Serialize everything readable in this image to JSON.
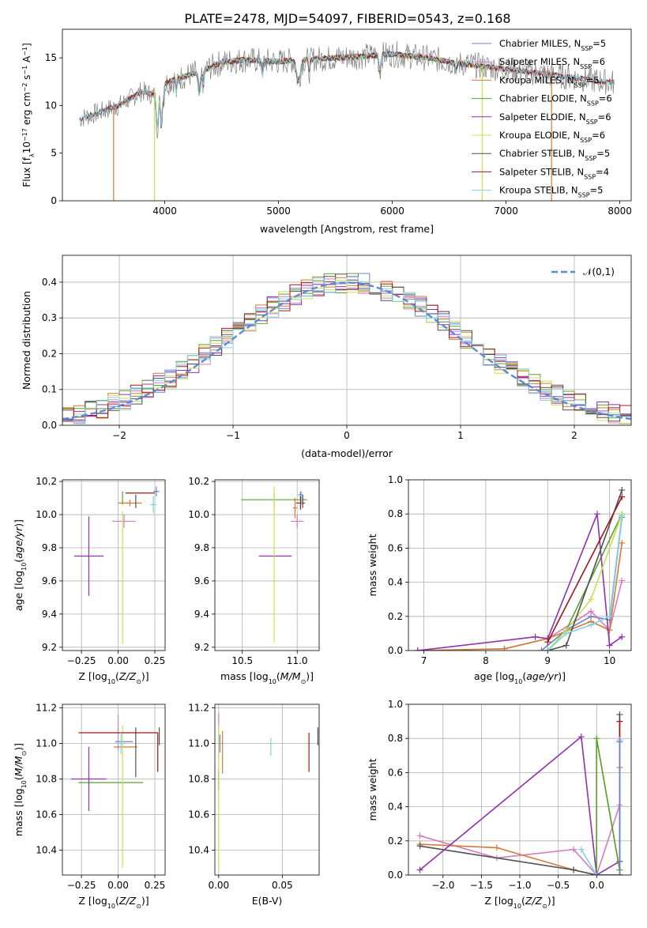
{
  "title": "PLATE=2478, MJD=54097, FIBERID=0543, z=0.168",
  "colors": {
    "chabrier_miles": "#6f7fd0",
    "salpeter_miles": "#d47cc0",
    "kroupa_miles": "#d27a36",
    "chabrier_elodie": "#5aa02c",
    "salpeter_elodie": "#9030b0",
    "kroupa_elodie": "#c9e052",
    "chabrier_stelib": "#505050",
    "salpeter_stelib": "#a01818",
    "kroupa_stelib": "#7fd3e0",
    "gauss": "#5b8bd8"
  },
  "chart_data": [
    {
      "id": "spectrum",
      "type": "line",
      "title": "PLATE=2478, MJD=54097, FIBERID=0543, z=0.168",
      "xlabel": "wavelength [Angstrom, rest frame]",
      "ylabel": "Flux [f_λ 10^-17 erg cm^-2 s^-1 A^-1]",
      "xlim": [
        3100,
        8100
      ],
      "ylim": [
        0,
        18
      ],
      "xticks": [
        4000,
        5000,
        6000,
        7000,
        8000
      ],
      "yticks": [
        0,
        5,
        10,
        15
      ],
      "legend_position": "right",
      "legend": [
        "Chabrier MILES, N_SSP=5",
        "Salpeter MILES, N_SSP=6",
        "Kroupa MILES, N_SSP=5",
        "Chabrier ELODIE, N_SSP=6",
        "Salpeter ELODIE, N_SSP=6",
        "Kroupa ELODIE, N_SSP=6",
        "Chabrier STELIB, N_SSP=5",
        "Salpeter STELIB, N_SSP=4",
        "Kroupa STELIB, N_SSP=5"
      ],
      "continuum": [
        [
          3250,
          8.6
        ],
        [
          3400,
          9.2
        ],
        [
          3600,
          10.0
        ],
        [
          3800,
          11.5
        ],
        [
          3950,
          12.0
        ],
        [
          4100,
          12.8
        ],
        [
          4300,
          13.5
        ],
        [
          4500,
          14.5
        ],
        [
          4700,
          14.8
        ],
        [
          5000,
          14.6
        ],
        [
          5200,
          14.8
        ],
        [
          5500,
          15.0
        ],
        [
          5800,
          15.2
        ],
        [
          6000,
          15.4
        ],
        [
          6300,
          15.0
        ],
        [
          6600,
          14.4
        ],
        [
          6800,
          14.1
        ],
        [
          7000,
          13.8
        ],
        [
          7200,
          13.5
        ],
        [
          7400,
          13.2
        ],
        [
          7600,
          12.9
        ],
        [
          7800,
          12.6
        ],
        [
          7950,
          12.4
        ]
      ],
      "model_dropouts": [
        [
          3550,
          "kroupa_miles"
        ],
        [
          3910,
          "kroupa_elodie"
        ],
        [
          6790,
          "kroupa_elodie"
        ],
        [
          7400,
          "kroupa_miles"
        ]
      ]
    },
    {
      "id": "residuals",
      "type": "line",
      "xlabel": "(data-model)/error",
      "ylabel": "Normed distribution",
      "xlim": [
        -2.5,
        2.5
      ],
      "ylim": [
        0,
        0.475
      ],
      "xticks": [
        -2,
        -1,
        0,
        1,
        2
      ],
      "yticks": [
        0.0,
        0.1,
        0.2,
        0.3,
        0.4
      ],
      "legend": [
        "𝒩(0,1)"
      ],
      "legend_position": "top-right",
      "bin_width": 0.1,
      "bin_start": -2.5
    },
    {
      "id": "age_vs_Z",
      "type": "scatter",
      "xlabel": "Z [log10(Z/Z☉)]",
      "ylabel": "age [log10(age/yr)]",
      "xlim": [
        -0.38,
        0.32
      ],
      "ylim": [
        9.18,
        10.21
      ],
      "xticks": [
        -0.25,
        0.0,
        0.25
      ],
      "xticklabels": [
        "−0.25",
        "0.00",
        "0.25"
      ],
      "yticks": [
        9.2,
        9.4,
        9.6,
        9.8,
        10.0,
        10.2
      ],
      "points": [
        {
          "model": "chabrier_miles",
          "x": 0.26,
          "y": 10.14,
          "xerr": 0.02,
          "yerr": 0.03
        },
        {
          "model": "salpeter_miles",
          "x": 0.04,
          "y": 9.96,
          "xerr": 0.08,
          "yerr": 0.04
        },
        {
          "model": "kroupa_miles",
          "x": 0.08,
          "y": 10.07,
          "xerr": 0.08,
          "yerr": 0.02
        },
        {
          "model": "chabrier_elodie",
          "x": 0.03,
          "y": 10.1,
          "xerr": 0.0,
          "yerr": 0.04
        },
        {
          "model": "salpeter_elodie",
          "x": -0.2,
          "y": 9.75,
          "xerr": 0.1,
          "yerr": 0.24
        },
        {
          "model": "kroupa_elodie",
          "x": 0.03,
          "y": 9.62,
          "xerr": 0.0,
          "yerr": 0.4
        },
        {
          "model": "chabrier_stelib",
          "x": 0.12,
          "y": 10.08,
          "xerr": 0.0,
          "yerr": 0.04
        },
        {
          "model": "salpeter_stelib",
          "x": 0.15,
          "y": 10.13,
          "xerr": 0.1,
          "yerr": 0.0
        },
        {
          "model": "kroupa_stelib",
          "x": 0.24,
          "y": 10.06,
          "xerr": 0.02,
          "yerr": 0.05
        }
      ]
    },
    {
      "id": "age_vs_mass",
      "type": "scatter",
      "xlabel": "mass [log10(M/M☉)]",
      "ylabel": "",
      "xlim": [
        10.25,
        11.2
      ],
      "ylim": [
        9.18,
        10.21
      ],
      "xticks": [
        10.5,
        11.0
      ],
      "xticklabels": [
        "10.5",
        "11.0"
      ],
      "yticks": [
        9.2,
        9.4,
        9.6,
        9.8,
        10.0,
        10.2
      ],
      "points": [
        {
          "model": "chabrier_miles",
          "x": 11.03,
          "y": 10.12,
          "xerr": 0.02,
          "yerr": 0.02
        },
        {
          "model": "salpeter_miles",
          "x": 11.0,
          "y": 9.96,
          "xerr": 0.06,
          "yerr": 0.04
        },
        {
          "model": "kroupa_miles",
          "x": 10.98,
          "y": 10.04,
          "xerr": 0.02,
          "yerr": 0.06
        },
        {
          "model": "chabrier_elodie",
          "x": 10.79,
          "y": 10.09,
          "xerr": 0.3,
          "yerr": 0.04
        },
        {
          "model": "salpeter_elodie",
          "x": 10.8,
          "y": 9.75,
          "xerr": 0.15,
          "yerr": 0.0
        },
        {
          "model": "kroupa_elodie",
          "x": 10.79,
          "y": 9.7,
          "xerr": 0.0,
          "yerr": 0.47
        },
        {
          "model": "chabrier_stelib",
          "x": 11.05,
          "y": 10.08,
          "xerr": 0.0,
          "yerr": 0.04
        },
        {
          "model": "salpeter_stelib",
          "x": 11.03,
          "y": 10.07,
          "xerr": 0.04,
          "yerr": 0.04
        },
        {
          "model": "kroupa_stelib",
          "x": 11.04,
          "y": 10.1,
          "xerr": 0.0,
          "yerr": 0.04
        }
      ]
    },
    {
      "id": "weight_vs_age",
      "type": "line",
      "xlabel": "age [log10(age/yr)]",
      "ylabel": "mass weight",
      "xlim": [
        6.75,
        10.35
      ],
      "ylim": [
        0,
        1
      ],
      "xticks": [
        7,
        8,
        9,
        10
      ],
      "yticks": [
        0.0,
        0.2,
        0.4,
        0.6,
        0.8,
        1.0
      ],
      "series": [
        {
          "model": "chabrier_miles",
          "x": [
            8.9,
            9.3,
            9.7,
            10.0,
            10.2
          ],
          "y": [
            0.0,
            0.12,
            0.2,
            0.18,
            0.78
          ]
        },
        {
          "model": "salpeter_miles",
          "x": [
            8.3,
            9.0,
            9.7,
            10.0,
            10.2
          ],
          "y": [
            0.01,
            0.07,
            0.23,
            0.12,
            0.41
          ]
        },
        {
          "model": "kroupa_miles",
          "x": [
            6.9,
            8.3,
            9.0,
            9.7,
            10.0,
            10.2
          ],
          "y": [
            0.0,
            0.01,
            0.07,
            0.17,
            0.12,
            0.63
          ]
        },
        {
          "model": "chabrier_elodie",
          "x": [
            9.0,
            9.3,
            10.2
          ],
          "y": [
            0.0,
            0.12,
            0.8
          ]
        },
        {
          "model": "salpeter_elodie",
          "x": [
            6.9,
            8.8,
            9.0,
            9.8,
            10.0,
            10.2
          ],
          "y": [
            0.0,
            0.08,
            0.07,
            0.8,
            0.03,
            0.08
          ]
        },
        {
          "model": "kroupa_elodie",
          "x": [
            9.0,
            9.3,
            9.7,
            10.2
          ],
          "y": [
            0.0,
            0.12,
            0.3,
            0.8
          ]
        },
        {
          "model": "chabrier_stelib",
          "x": [
            9.0,
            9.3,
            10.2
          ],
          "y": [
            0.0,
            0.03,
            0.94
          ]
        },
        {
          "model": "salpeter_stelib",
          "x": [
            9.0,
            10.2
          ],
          "y": [
            0.05,
            0.9
          ]
        },
        {
          "model": "kroupa_stelib",
          "x": [
            9.0,
            9.3,
            9.7,
            10.0,
            10.2
          ],
          "y": [
            0.0,
            0.1,
            0.15,
            0.2,
            0.79
          ]
        }
      ]
    },
    {
      "id": "mass_vs_Z",
      "type": "scatter",
      "xlabel": "Z [log10(Z/Z☉)]",
      "ylabel": "mass [log10(M/M☉)]",
      "xlim": [
        -0.38,
        0.32
      ],
      "ylim": [
        10.26,
        11.22
      ],
      "xticks": [
        -0.25,
        0.0,
        0.25
      ],
      "xticklabels": [
        "−0.25",
        "0.00",
        "0.25"
      ],
      "yticks": [
        10.4,
        10.6,
        10.8,
        11.0,
        11.2
      ],
      "points": [
        {
          "model": "chabrier_miles",
          "x": 0.04,
          "y": 11.01,
          "xerr": 0.06,
          "yerr": 0.0
        },
        {
          "model": "salpeter_miles",
          "x": 0.0,
          "y": 11.06,
          "xerr": 0.0,
          "yerr": 0.1
        },
        {
          "model": "kroupa_miles",
          "x": 0.05,
          "y": 10.98,
          "xerr": 0.08,
          "yerr": 0.0
        },
        {
          "model": "chabrier_elodie",
          "x": -0.05,
          "y": 10.78,
          "xerr": 0.22,
          "yerr": 0.0
        },
        {
          "model": "salpeter_elodie",
          "x": -0.2,
          "y": 10.8,
          "xerr": 0.12,
          "yerr": 0.18
        },
        {
          "model": "kroupa_elodie",
          "x": 0.03,
          "y": 10.7,
          "xerr": 0.0,
          "yerr": 0.4
        },
        {
          "model": "chabrier_stelib",
          "x": 0.12,
          "y": 10.95,
          "xerr": 0.0,
          "yerr": 0.14
        },
        {
          "model": "salpeter_stelib",
          "x": 0.0,
          "y": 11.06,
          "xerr": 0.27,
          "yerr": 0.0
        },
        {
          "model": "kroupa_stelib",
          "x": 0.02,
          "y": 11.0,
          "xerr": 0.04,
          "yerr": 0.06
        }
      ],
      "extra_segments": [
        {
          "model": "salpeter_stelib",
          "x": 0.27,
          "y": 10.95,
          "xerr": 0.0,
          "yerr": 0.11
        },
        {
          "model": "chabrier_stelib",
          "x": 0.28,
          "y": 11.04,
          "xerr": 0.0,
          "yerr": 0.05
        }
      ]
    },
    {
      "id": "mass_vs_ebv",
      "type": "scatter",
      "xlabel": "E(B-V)",
      "ylabel": "",
      "xlim": [
        -0.003,
        0.079
      ],
      "ylim": [
        10.26,
        11.22
      ],
      "xticks": [
        0.0,
        0.05
      ],
      "xticklabels": [
        "0.00",
        "0.05"
      ],
      "yticks": [
        10.4,
        10.6,
        10.8,
        11.0,
        11.2
      ],
      "points": [
        {
          "model": "chabrier_miles",
          "x": 0.001,
          "y": 11.0,
          "xerr": 0,
          "yerr": 0.05
        },
        {
          "model": "salpeter_miles",
          "x": 0.0,
          "y": 11.05,
          "xerr": 0,
          "yerr": 0.12
        },
        {
          "model": "kroupa_miles",
          "x": 0.003,
          "y": 10.95,
          "xerr": 0,
          "yerr": 0.12
        },
        {
          "model": "chabrier_elodie",
          "x": 0.0,
          "y": 10.78,
          "xerr": 0,
          "yerr": 0.05
        },
        {
          "model": "salpeter_elodie",
          "x": 0.0,
          "y": 10.8,
          "xerr": 0,
          "yerr": 0.05
        },
        {
          "model": "kroupa_elodie",
          "x": 0.0,
          "y": 10.7,
          "xerr": 0,
          "yerr": 0.4
        },
        {
          "model": "chabrier_stelib",
          "x": 0.078,
          "y": 11.04,
          "xerr": 0,
          "yerr": 0.05
        },
        {
          "model": "salpeter_stelib",
          "x": 0.071,
          "y": 10.95,
          "xerr": 0,
          "yerr": 0.11
        },
        {
          "model": "kroupa_stelib",
          "x": 0.041,
          "y": 10.98,
          "xerr": 0,
          "yerr": 0.05
        }
      ]
    },
    {
      "id": "weight_vs_Z",
      "type": "line",
      "xlabel": "Z [log10(Z/Z☉)]",
      "ylabel": "mass weight",
      "xlim": [
        -2.45,
        0.45
      ],
      "ylim": [
        0,
        1
      ],
      "xticks": [
        -2.0,
        -1.5,
        -1.0,
        -0.5,
        0.0
      ],
      "xticklabels": [
        "−2.0",
        "−1.5",
        "−1.0",
        "−0.5",
        "0.0"
      ],
      "yticks": [
        0.0,
        0.2,
        0.4,
        0.6,
        0.8,
        1.0
      ],
      "series": [
        {
          "model": "salpeter_miles",
          "x": [
            -2.3,
            -1.3,
            -0.3,
            0.0,
            0.3
          ],
          "y": [
            0.23,
            0.1,
            0.15,
            0.0,
            0.41
          ]
        },
        {
          "model": "kroupa_miles",
          "x": [
            -2.3,
            -1.3,
            -0.3,
            0.0,
            0.3,
            0.3
          ],
          "y": [
            0.18,
            0.16,
            0.03,
            0.0,
            0.0,
            0.63
          ]
        },
        {
          "model": "chabrier_stelib",
          "x": [
            -2.3,
            -0.3,
            0.0,
            0.3,
            0.3
          ],
          "y": [
            0.17,
            0.03,
            0.0,
            0.0,
            0.94
          ]
        },
        {
          "model": "salpeter_elodie",
          "x": [
            -2.3,
            -0.2,
            0.0,
            0.3
          ],
          "y": [
            0.03,
            0.81,
            0.0,
            0.08
          ]
        },
        {
          "model": "kroupa_elodie",
          "x": [
            0.0,
            0.0,
            0.3
          ],
          "y": [
            0.0,
            0.8,
            0.03
          ]
        },
        {
          "model": "chabrier_elodie",
          "x": [
            0.0,
            0.0,
            0.3
          ],
          "y": [
            0.0,
            0.8,
            0.03
          ]
        },
        {
          "model": "salpeter_stelib",
          "x": [
            0.0,
            0.3,
            0.3
          ],
          "y": [
            0.0,
            0.0,
            0.9
          ]
        },
        {
          "model": "kroupa_stelib",
          "x": [
            -0.2,
            0.0,
            0.3,
            0.3
          ],
          "y": [
            0.15,
            0.0,
            0.0,
            0.79
          ]
        },
        {
          "model": "chabrier_miles",
          "x": [
            0.0,
            0.3,
            0.3
          ],
          "y": [
            0.0,
            0.0,
            0.78
          ]
        }
      ]
    }
  ]
}
